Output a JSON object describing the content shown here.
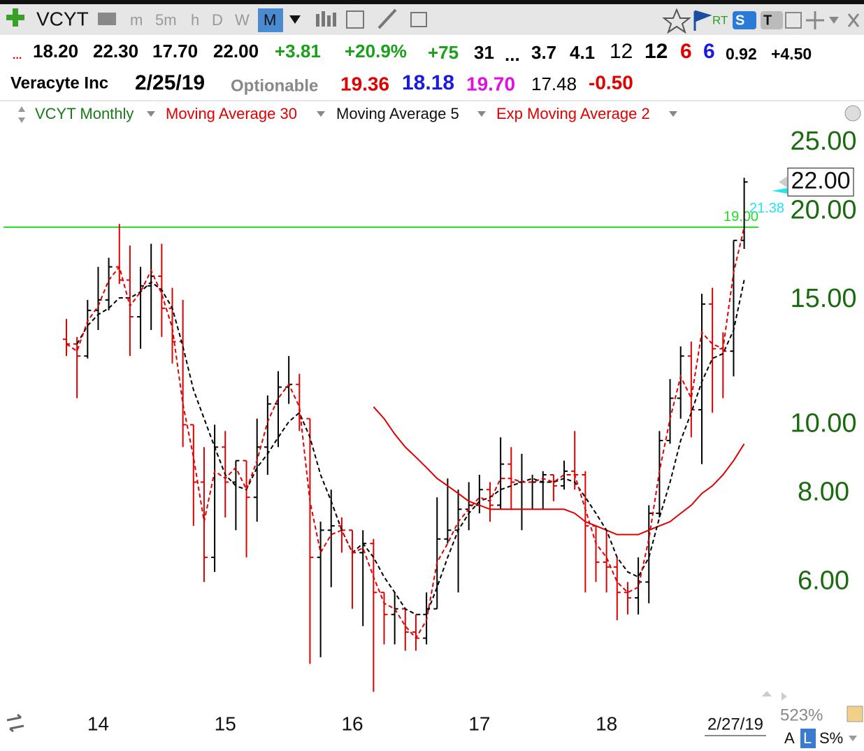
{
  "toolbar": {
    "symbol": "VCYT",
    "timeframes": [
      "m",
      "5m",
      "h",
      "D",
      "W",
      "M"
    ],
    "rt": "RT",
    "s": "S",
    "t": "T"
  },
  "quote_row": [
    "...",
    "18.20",
    "22.30",
    "17.70",
    "22.00",
    "+3.81",
    "+20.9%",
    "+75",
    "31",
    "...",
    "3.7",
    "4.1",
    "12",
    "12",
    "6",
    "6",
    "0.92",
    "+4.50"
  ],
  "info_row": [
    "Veracyte Inc",
    "2/25/19",
    "Optionable",
    "19.36",
    "18.18",
    "19.70",
    "17.48",
    "-0.50"
  ],
  "legend": [
    "VCYT Monthly",
    "Moving Average 30",
    "Moving Average 5",
    "Exp Moving Average 2"
  ],
  "footer": {
    "zoom": "523%",
    "a": "A",
    "l": "L",
    "s": "S%"
  },
  "chart_data": {
    "type": "ohlc",
    "log_scale": true,
    "categories": [
      null,
      null,
      null,
      "14",
      null,
      null,
      null,
      null,
      null,
      null,
      null,
      null,
      null,
      null,
      null,
      "15",
      null,
      null,
      null,
      null,
      null,
      null,
      null,
      null,
      null,
      null,
      null,
      "16",
      null,
      null,
      null,
      null,
      null,
      null,
      null,
      null,
      null,
      null,
      null,
      "17",
      null,
      null,
      null,
      null,
      null,
      null,
      null,
      null,
      null,
      null,
      null,
      "18",
      null,
      null,
      null,
      null,
      null,
      null,
      null,
      null,
      null,
      null,
      null,
      null,
      null
    ],
    "date_label": "2/27/19",
    "up_color": "#000000",
    "down_color": "#e00000",
    "open": [
      13.2,
      13.0,
      12.5,
      14.5,
      15.0,
      16.7,
      16.0,
      14.2,
      15.7,
      16.2,
      14.6,
      13.1,
      10.0,
      8.3,
      6.5,
      9.3,
      8.3,
      8.9,
      7.9,
      9.3,
      10.7,
      11.3,
      11.4,
      10.2,
      6.5,
      7.1,
      7.2,
      7.1,
      6.6,
      6.8,
      5.8,
      5.4,
      5.5,
      5.1,
      5.0,
      5.5,
      6.9,
      7.1,
      7.6,
      7.7,
      8.1,
      7.7,
      8.8,
      8.3,
      8.3,
      8.3,
      8.5,
      8.2,
      8.6,
      8.5,
      7.2,
      6.4,
      6.3,
      5.8,
      5.7,
      6.0,
      7.5,
      9.5,
      10.9,
      12.5,
      10.5,
      14.8,
      12.8,
      12.7,
      18.2
    ],
    "high": [
      14.1,
      13.3,
      15.0,
      16.7,
      17.2,
      19.2,
      17.9,
      16.7,
      18.0,
      18.0,
      15.6,
      15.0,
      10.0,
      9.3,
      10.0,
      9.8,
      8.9,
      8.9,
      10.2,
      11.0,
      11.9,
      12.5,
      11.8,
      10.2,
      7.3,
      8.1,
      7.4,
      7.1,
      7.1,
      6.9,
      5.8,
      5.8,
      5.5,
      5.4,
      5.8,
      7.9,
      8.4,
      8.1,
      8.3,
      8.5,
      8.3,
      9.6,
      9.3,
      9.1,
      8.5,
      8.6,
      8.5,
      8.9,
      9.8,
      8.6,
      7.2,
      7.1,
      6.5,
      6.0,
      6.5,
      7.7,
      9.8,
      11.6,
      12.9,
      13.1,
      15.3,
      15.6,
      13.5,
      18.2,
      22.3
    ],
    "low": [
      12.5,
      10.9,
      12.4,
      13.6,
      14.5,
      15.8,
      12.5,
      12.8,
      13.6,
      13.3,
      12.2,
      9.3,
      7.2,
      6.0,
      6.2,
      7.4,
      7.1,
      6.5,
      7.3,
      8.5,
      9.3,
      10.7,
      9.8,
      4.6,
      4.7,
      5.9,
      6.6,
      5.5,
      5.2,
      4.2,
      4.9,
      4.9,
      4.8,
      4.8,
      4.9,
      5.5,
      6.8,
      5.8,
      7.1,
      7.5,
      7.3,
      7.6,
      7.6,
      7.1,
      7.6,
      7.6,
      7.8,
      8.1,
      8.1,
      5.8,
      6.0,
      5.8,
      5.3,
      5.4,
      5.4,
      5.6,
      7.4,
      9.4,
      10.2,
      9.6,
      8.8,
      10.4,
      10.9,
      11.7,
      17.7
    ],
    "close": [
      13.0,
      12.5,
      14.5,
      15.0,
      16.7,
      16.0,
      14.2,
      15.7,
      16.2,
      14.6,
      13.1,
      10.0,
      8.3,
      6.5,
      9.3,
      8.3,
      8.9,
      7.9,
      9.3,
      10.7,
      11.3,
      11.4,
      10.2,
      6.5,
      7.1,
      7.2,
      7.1,
      6.6,
      6.8,
      5.8,
      5.4,
      5.5,
      5.1,
      5.0,
      5.5,
      6.9,
      7.1,
      7.6,
      7.7,
      8.1,
      7.7,
      8.8,
      8.3,
      8.3,
      8.3,
      8.5,
      8.2,
      8.6,
      8.5,
      7.2,
      6.4,
      6.3,
      5.8,
      5.7,
      6.0,
      7.5,
      9.5,
      10.9,
      12.5,
      10.5,
      14.8,
      12.8,
      12.7,
      18.2,
      22.0
    ],
    "series": [
      {
        "name": "Moving Average 30",
        "color": "#e00000",
        "dash": false,
        "values": [
          null,
          null,
          null,
          null,
          null,
          null,
          null,
          null,
          null,
          null,
          null,
          null,
          null,
          null,
          null,
          null,
          null,
          null,
          null,
          null,
          null,
          null,
          null,
          null,
          null,
          null,
          null,
          null,
          null,
          10.6,
          10.2,
          9.7,
          9.3,
          9.0,
          8.7,
          8.4,
          8.2,
          8.0,
          7.8,
          7.7,
          7.6,
          7.6,
          7.6,
          7.6,
          7.6,
          7.6,
          7.6,
          7.6,
          7.5,
          7.3,
          7.2,
          7.1,
          7.0,
          7.0,
          7.0,
          7.1,
          7.2,
          7.3,
          7.5,
          7.7,
          8.0,
          8.2,
          8.5,
          8.9,
          9.4
        ]
      },
      {
        "name": "Moving Average 5",
        "color": "#000000",
        "dash": true,
        "values": [
          null,
          13.0,
          13.8,
          14.3,
          14.6,
          15.1,
          15.1,
          15.4,
          15.9,
          15.5,
          14.6,
          12.9,
          11.2,
          10.2,
          9.3,
          8.5,
          8.2,
          8.1,
          8.7,
          9.1,
          9.6,
          10.1,
          10.4,
          9.6,
          8.5,
          7.8,
          7.1,
          6.6,
          6.8,
          6.5,
          6.1,
          5.8,
          5.5,
          5.4,
          5.4,
          5.9,
          6.5,
          7.1,
          7.5,
          7.8,
          7.9,
          8.1,
          8.2,
          8.3,
          8.4,
          8.3,
          8.3,
          8.4,
          8.3,
          7.9,
          7.5,
          7.1,
          6.5,
          6.2,
          6.1,
          6.5,
          7.4,
          8.3,
          9.5,
          10.4,
          11.5,
          12.4,
          12.6,
          13.6,
          16.0
        ]
      },
      {
        "name": "Exp Moving Average 2",
        "color": "#e00000",
        "dash": true,
        "values": [
          13.0,
          12.7,
          14.0,
          14.7,
          16.0,
          16.7,
          14.7,
          15.4,
          16.5,
          15.3,
          13.7,
          10.7,
          9.0,
          7.3,
          8.6,
          8.4,
          8.7,
          8.1,
          8.9,
          10.1,
          10.9,
          11.4,
          10.6,
          7.8,
          6.6,
          7.0,
          7.1,
          6.6,
          6.7,
          6.1,
          5.6,
          5.5,
          5.2,
          5.0,
          5.3,
          6.4,
          6.8,
          7.3,
          7.6,
          7.9,
          7.8,
          8.4,
          8.4,
          8.3,
          8.3,
          8.4,
          8.3,
          8.5,
          8.5,
          7.6,
          6.8,
          6.5,
          6.0,
          5.8,
          5.9,
          6.9,
          8.6,
          10.2,
          11.7,
          10.9,
          13.5,
          13.0,
          12.8,
          16.4,
          19.0
        ]
      }
    ],
    "hline": {
      "value": 19,
      "label": "19.00",
      "color": "#22dd22"
    },
    "alert": {
      "value": 21.38,
      "label": "21.38",
      "color": "#22e5f0"
    },
    "last_price": {
      "value": 22,
      "label": "22.00"
    },
    "ylim": [
      4.1,
      26.4
    ],
    "yticks": [
      {
        "value": 6,
        "label": "6.00"
      },
      {
        "value": 8,
        "label": "8.00"
      },
      {
        "value": 10,
        "label": "10.00"
      },
      {
        "value": 15,
        "label": "15.00"
      },
      {
        "value": 20,
        "label": "20.00"
      },
      {
        "value": 25,
        "label": "25.00"
      }
    ]
  }
}
